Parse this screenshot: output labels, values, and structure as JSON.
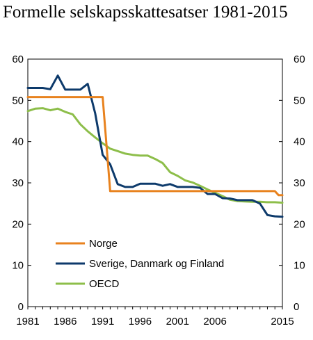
{
  "chart_data": {
    "type": "line",
    "title": "Formelle selskapsskattesatser 1981-2015",
    "xlabel": "",
    "ylabel": "",
    "xlim": [
      1981,
      2015
    ],
    "ylim": [
      0,
      60
    ],
    "x_ticks": [
      "1981",
      "1986",
      "1991",
      "1996",
      "2001",
      "2006",
      "2015"
    ],
    "y_ticks": [
      "0",
      "10",
      "20",
      "30",
      "40",
      "50",
      "60"
    ],
    "legend_position": "bottom-left",
    "grid": false,
    "series": [
      {
        "name": "Norge",
        "color": "#E8821E",
        "points": [
          [
            1981,
            50.8
          ],
          [
            1991,
            50.8
          ],
          [
            1992,
            28
          ],
          [
            2014,
            28
          ],
          [
            2014.5,
            27
          ],
          [
            2015,
            27
          ]
        ]
      },
      {
        "name": "Sverige, Danmark og Finland",
        "color": "#0D3A6B",
        "points": [
          [
            1981,
            53
          ],
          [
            1982,
            53
          ],
          [
            1983,
            53
          ],
          [
            1984,
            52.7
          ],
          [
            1985,
            56
          ],
          [
            1986,
            52.6
          ],
          [
            1987,
            52.6
          ],
          [
            1988,
            52.6
          ],
          [
            1989,
            54
          ],
          [
            1990,
            46.8
          ],
          [
            1991,
            36.8
          ],
          [
            1992,
            34.5
          ],
          [
            1993,
            29.7
          ],
          [
            1994,
            29
          ],
          [
            1995,
            29
          ],
          [
            1996,
            29.8
          ],
          [
            1997,
            29.8
          ],
          [
            1998,
            29.8
          ],
          [
            1999,
            29.3
          ],
          [
            2000,
            29.7
          ],
          [
            2001,
            29
          ],
          [
            2002,
            29
          ],
          [
            2003,
            29
          ],
          [
            2004,
            28.8
          ],
          [
            2005,
            27.3
          ],
          [
            2006,
            27.3
          ],
          [
            2007,
            26.3
          ],
          [
            2008,
            26.2
          ],
          [
            2009,
            25.8
          ],
          [
            2010,
            25.8
          ],
          [
            2011,
            25.8
          ],
          [
            2012,
            25
          ],
          [
            2013,
            22.2
          ],
          [
            2014,
            21.9
          ],
          [
            2015,
            21.8
          ]
        ]
      },
      {
        "name": "OECD",
        "color": "#8DBE4A",
        "points": [
          [
            1981,
            47.4
          ],
          [
            1982,
            48
          ],
          [
            1983,
            48.1
          ],
          [
            1984,
            47.6
          ],
          [
            1985,
            48
          ],
          [
            1986,
            47.2
          ],
          [
            1987,
            46.6
          ],
          [
            1988,
            44.2
          ],
          [
            1989,
            42.5
          ],
          [
            1990,
            41
          ],
          [
            1991,
            39.6
          ],
          [
            1992,
            38.3
          ],
          [
            1993,
            37.7
          ],
          [
            1994,
            37.1
          ],
          [
            1995,
            36.8
          ],
          [
            1996,
            36.6
          ],
          [
            1997,
            36.6
          ],
          [
            1998,
            35.8
          ],
          [
            1999,
            34.8
          ],
          [
            2000,
            32.6
          ],
          [
            2001,
            31.7
          ],
          [
            2002,
            30.6
          ],
          [
            2003,
            30.1
          ],
          [
            2004,
            29.3
          ],
          [
            2005,
            28.4
          ],
          [
            2006,
            27.6
          ],
          [
            2007,
            26.8
          ],
          [
            2008,
            25.9
          ],
          [
            2009,
            25.6
          ],
          [
            2010,
            25.5
          ],
          [
            2011,
            25.4
          ],
          [
            2012,
            25.4
          ],
          [
            2013,
            25.3
          ],
          [
            2014,
            25.3
          ],
          [
            2015,
            25.2
          ]
        ]
      }
    ]
  }
}
